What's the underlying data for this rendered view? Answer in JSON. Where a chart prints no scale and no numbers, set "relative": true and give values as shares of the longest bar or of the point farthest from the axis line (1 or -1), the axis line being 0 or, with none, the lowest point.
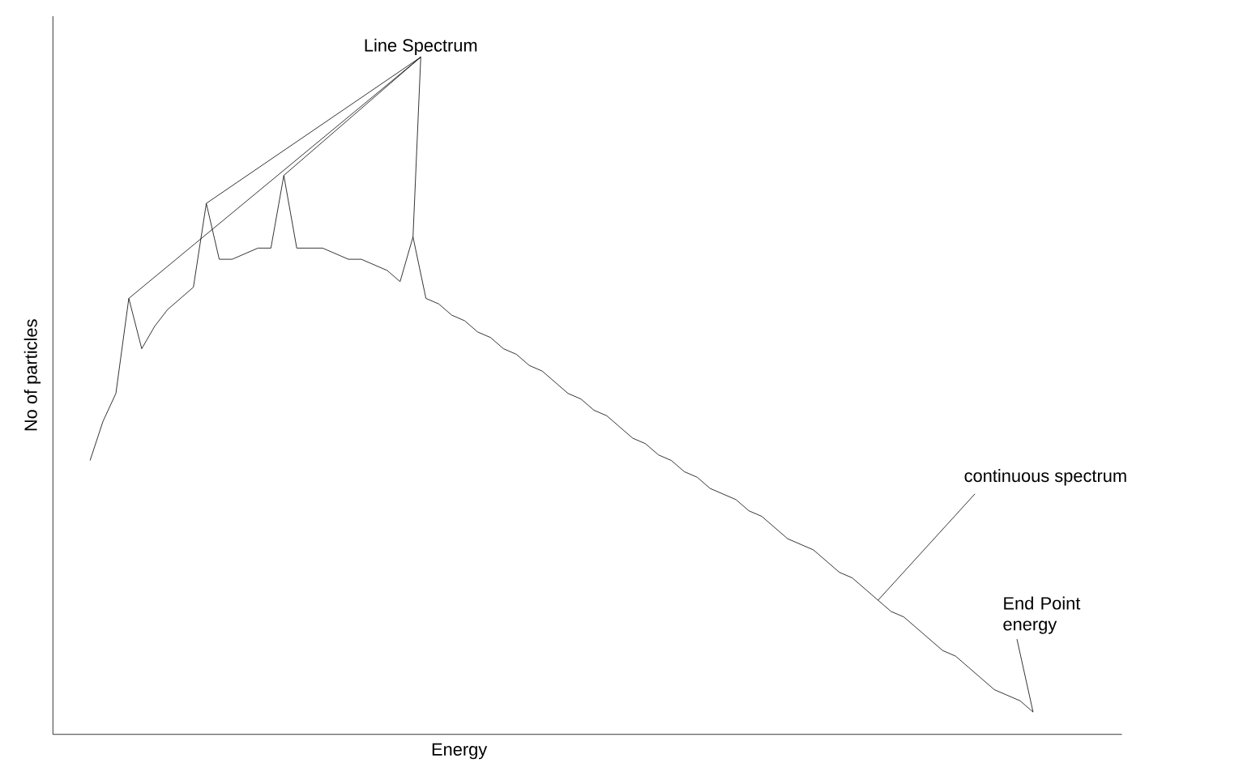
{
  "chart_data": {
    "type": "line",
    "relative": true,
    "xlabel": "Energy",
    "ylabel": "No of particles",
    "color": "#000000",
    "annotations": [
      "Line Spectrum",
      "continuous spectrum",
      "End Point energy"
    ],
    "categories": [
      null,
      null,
      null,
      null,
      null,
      null,
      null,
      null,
      null,
      null,
      null,
      null,
      null,
      null,
      null,
      null,
      null,
      null,
      null,
      null,
      null,
      null,
      null,
      null,
      null,
      null,
      null,
      null,
      null,
      null,
      null,
      null,
      null,
      null,
      null,
      null,
      null,
      null,
      null,
      null,
      null,
      null,
      null,
      null,
      null,
      null,
      null,
      null,
      null,
      null,
      null,
      null,
      null,
      null,
      null,
      null,
      null,
      null,
      null,
      null,
      null,
      null,
      null,
      null,
      null,
      null,
      null,
      null,
      null,
      null,
      null,
      null,
      null,
      null
    ],
    "values": [
      0.49,
      0.56,
      0.61,
      0.78,
      0.69,
      0.73,
      0.76,
      0.78,
      0.8,
      0.95,
      0.85,
      0.85,
      0.86,
      0.87,
      0.87,
      1,
      0.87,
      0.87,
      0.87,
      0.86,
      0.85,
      0.85,
      0.84,
      0.83,
      0.81,
      0.89,
      0.78,
      0.77,
      0.75,
      0.74,
      0.72,
      0.71,
      0.69,
      0.68,
      0.66,
      0.65,
      0.63,
      0.61,
      0.6,
      0.58,
      0.57,
      0.55,
      0.53,
      0.52,
      0.5,
      0.49,
      0.47,
      0.46,
      0.44,
      0.43,
      0.42,
      0.4,
      0.39,
      0.37,
      0.35,
      0.34,
      0.33,
      0.31,
      0.29,
      0.28,
      0.26,
      0.24,
      0.22,
      0.21,
      0.19,
      0.17,
      0.15,
      0.14,
      0.12,
      0.1,
      0.08,
      0.07,
      0.06,
      0.04
    ]
  }
}
